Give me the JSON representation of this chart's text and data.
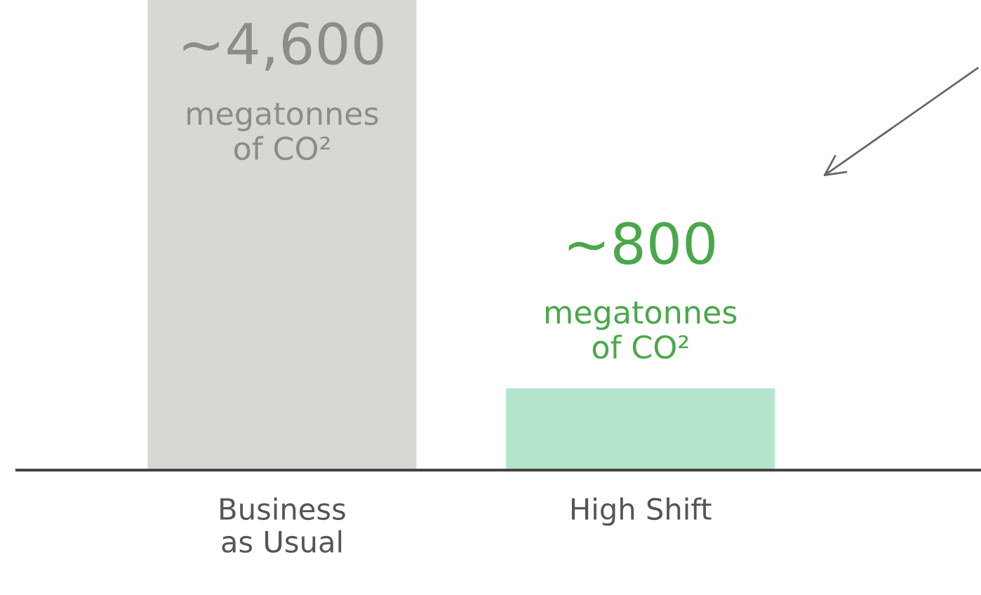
{
  "chart_data": {
    "type": "bar",
    "categories": [
      "Business\nas Usual",
      "High Shift"
    ],
    "values": [
      4600,
      800
    ],
    "colors": [
      "#d8d8d2",
      "#b2e5cb"
    ],
    "value_labels": [
      "~4,600\nmegatonnes\nof CO²",
      "~800\nmegatonnes\nof CO²"
    ],
    "grid": false,
    "legend": false
  }
}
